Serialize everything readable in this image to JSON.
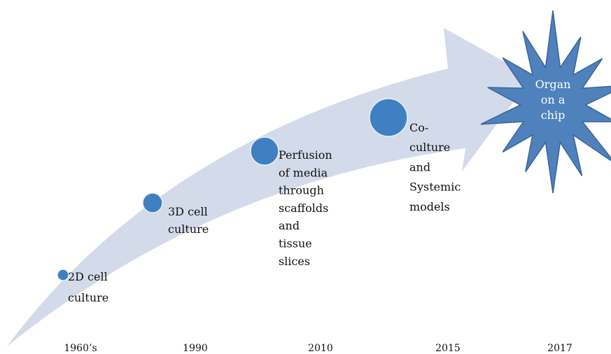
{
  "stages": [
    {
      "label": [
        "2D cell",
        "culture"
      ],
      "year": "1960’s"
    },
    {
      "label": [
        "3D cell",
        "culture"
      ],
      "year": "1990"
    },
    {
      "label": [
        "Perfusion",
        "of media",
        "through",
        "scaffolds",
        "and",
        "tissue",
        "slices"
      ],
      "year": "2010"
    },
    {
      "label": [
        "Co-",
        "culture",
        "and",
        "Systemic",
        "models"
      ],
      "year": "2015"
    }
  ],
  "goal": {
    "label": [
      "Organ",
      "on a",
      "chip"
    ],
    "year": "2017"
  }
}
